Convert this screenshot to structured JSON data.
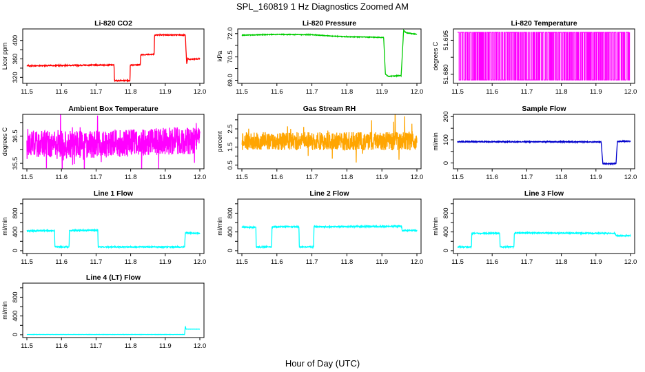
{
  "figure": {
    "title": "SPL_160819  1 Hz Diagnostics Zoomed AM",
    "xlabel": "Hour of Day (UTC)"
  },
  "chart_data": [
    {
      "type": "line",
      "title": "Li-820 CO2",
      "ylabel": "Licor ppm",
      "color": "#ff0000",
      "xlim": [
        11.5,
        12.0
      ],
      "ylim": [
        307,
        425
      ],
      "xticks": [
        "11.5",
        "11.6",
        "11.7",
        "11.8",
        "11.9",
        "12.0"
      ],
      "yticks": [
        320,
        340,
        360,
        380,
        400
      ],
      "ytick_labels": [
        "320",
        "",
        "360",
        "",
        "400"
      ],
      "noise": 1.0,
      "spike": 0,
      "series": [
        {
          "x": [
            11.5,
            11.752,
            11.753,
            11.798,
            11.799,
            11.828,
            11.829,
            11.868,
            11.869,
            11.958,
            11.962,
            11.965,
            11.968,
            12.0
          ],
          "y": [
            345,
            347,
            313,
            313,
            347,
            347,
            369,
            370,
            412,
            412,
            348,
            362,
            359,
            360
          ]
        }
      ]
    },
    {
      "type": "line",
      "title": "Li-820 Pressure",
      "ylabel": "kPa",
      "color": "#00cc00",
      "xlim": [
        11.5,
        12.0
      ],
      "ylim": [
        68.8,
        72.3
      ],
      "xticks": [
        "11.5",
        "11.6",
        "11.7",
        "11.8",
        "11.9",
        "12.0"
      ],
      "yticks": [
        69.0,
        69.75,
        70.5,
        71.25,
        72.0
      ],
      "ytick_labels": [
        "69.0",
        "",
        "70.5",
        "",
        "72.0"
      ],
      "noise": 0.02,
      "spike": 0,
      "series": [
        {
          "x": [
            11.5,
            11.6,
            11.7,
            11.75,
            11.8,
            11.85,
            11.905,
            11.91,
            11.918,
            11.955,
            11.962,
            11.97,
            12.0
          ],
          "y": [
            71.9,
            71.95,
            71.93,
            71.85,
            71.8,
            71.78,
            71.75,
            69.4,
            69.25,
            69.3,
            72.2,
            72.05,
            71.95
          ]
        }
      ]
    },
    {
      "type": "line",
      "title": "Li-820 Temperature",
      "ylabel": "degrees C",
      "color": "#ff00ff",
      "xlim": [
        11.5,
        12.0
      ],
      "ylim": [
        51.676,
        51.7
      ],
      "xticks": [
        "11.5",
        "11.6",
        "11.7",
        "11.8",
        "11.9",
        "12.0"
      ],
      "yticks": [
        51.68,
        51.6875,
        51.695
      ],
      "ytick_labels": [
        "51.680",
        "",
        "51.695"
      ],
      "style": "binary",
      "low": 51.6775,
      "high": 51.6985
    },
    {
      "type": "line",
      "title": "Ambient Box Temperature",
      "ylabel": "degrees C",
      "color": "#ff00ff",
      "xlim": [
        11.5,
        12.0
      ],
      "ylim": [
        35.3,
        37.3
      ],
      "xticks": [
        "11.5",
        "11.6",
        "11.7",
        "11.8",
        "11.9",
        "12.0"
      ],
      "yticks": [
        35.5,
        36.0,
        36.5,
        37.0
      ],
      "ytick_labels": [
        "35.5",
        "",
        "36.5",
        ""
      ],
      "noise": 0.5,
      "spike": 0.35,
      "series": [
        {
          "x": [
            11.5,
            11.75,
            11.85,
            12.0
          ],
          "y": [
            36.2,
            36.2,
            36.3,
            36.35
          ]
        }
      ]
    },
    {
      "type": "line",
      "title": "Gas Stream RH",
      "ylabel": "percent",
      "color": "#ffa500",
      "xlim": [
        11.5,
        12.0
      ],
      "ylim": [
        0.3,
        3.3
      ],
      "xticks": [
        "11.5",
        "11.6",
        "11.7",
        "11.8",
        "11.9",
        "12.0"
      ],
      "yticks": [
        0.5,
        1.0,
        1.5,
        2.0,
        2.5,
        3.0
      ],
      "ytick_labels": [
        "0.5",
        "",
        "1.5",
        "",
        "2.5",
        ""
      ],
      "noise": 0.5,
      "spike": 0.9,
      "series": [
        {
          "x": [
            11.5,
            12.0
          ],
          "y": [
            1.82,
            1.82
          ]
        }
      ]
    },
    {
      "type": "line",
      "title": "Sample Flow",
      "ylabel": "ml/min",
      "color": "#0000cc",
      "xlim": [
        11.5,
        12.0
      ],
      "ylim": [
        -25,
        210
      ],
      "xticks": [
        "11.5",
        "11.6",
        "11.7",
        "11.8",
        "11.9",
        "12.0"
      ],
      "yticks": [
        0,
        50,
        100,
        150,
        200
      ],
      "ytick_labels": [
        "0",
        "",
        "100",
        "",
        "200"
      ],
      "noise": 2,
      "spike": 0,
      "series": [
        {
          "x": [
            11.5,
            11.915,
            11.92,
            11.958,
            11.962,
            12.0
          ],
          "y": [
            92,
            91,
            -3,
            -3,
            93,
            94
          ]
        }
      ]
    },
    {
      "type": "line",
      "title": "Line 1 Flow",
      "ylabel": "ml/min",
      "color": "#00ffff",
      "xlim": [
        11.5,
        12.0
      ],
      "ylim": [
        -60,
        1100
      ],
      "xticks": [
        "11.5",
        "11.6",
        "11.7",
        "11.8",
        "11.9",
        "12.0"
      ],
      "yticks": [
        0,
        200,
        400,
        600,
        800,
        1000
      ],
      "ytick_labels": [
        "0",
        "",
        "400",
        "",
        "800",
        ""
      ],
      "noise": 12,
      "spike": 0,
      "series": [
        {
          "x": [
            11.5,
            11.58,
            11.581,
            11.622,
            11.623,
            11.705,
            11.706,
            11.956,
            11.958,
            12.0
          ],
          "y": [
            420,
            430,
            80,
            80,
            430,
            440,
            80,
            80,
            380,
            370
          ]
        }
      ]
    },
    {
      "type": "line",
      "title": "Line 2 Flow",
      "ylabel": "ml/min",
      "color": "#00ffff",
      "xlim": [
        11.5,
        12.0
      ],
      "ylim": [
        -60,
        1100
      ],
      "xticks": [
        "11.5",
        "11.6",
        "11.7",
        "11.8",
        "11.9",
        "12.0"
      ],
      "yticks": [
        0,
        200,
        400,
        600,
        800,
        1000
      ],
      "ytick_labels": [
        "0",
        "",
        "400",
        "",
        "800",
        ""
      ],
      "noise": 12,
      "spike": 0,
      "series": [
        {
          "x": [
            11.5,
            11.54,
            11.541,
            11.585,
            11.586,
            11.663,
            11.664,
            11.705,
            11.706,
            11.956,
            11.958,
            12.0
          ],
          "y": [
            500,
            500,
            80,
            80,
            510,
            510,
            80,
            80,
            510,
            520,
            430,
            430
          ]
        }
      ]
    },
    {
      "type": "line",
      "title": "Line 3 Flow",
      "ylabel": "ml/min",
      "color": "#00ffff",
      "xlim": [
        11.5,
        12.0
      ],
      "ylim": [
        -60,
        1100
      ],
      "xticks": [
        "11.5",
        "11.6",
        "11.7",
        "11.8",
        "11.9",
        "12.0"
      ],
      "yticks": [
        0,
        200,
        400,
        600,
        800,
        1000
      ],
      "ytick_labels": [
        "0",
        "",
        "400",
        "",
        "800",
        ""
      ],
      "noise": 12,
      "spike": 0,
      "series": [
        {
          "x": [
            11.5,
            11.54,
            11.541,
            11.622,
            11.623,
            11.663,
            11.664,
            11.956,
            11.958,
            12.0
          ],
          "y": [
            80,
            80,
            370,
            370,
            80,
            80,
            380,
            370,
            320,
            320
          ]
        }
      ]
    },
    {
      "type": "line",
      "title": "Line 4 (LT) Flow",
      "ylabel": "ml/min",
      "color": "#00ffff",
      "xlim": [
        11.5,
        12.0
      ],
      "ylim": [
        -60,
        1100
      ],
      "xticks": [
        "11.5",
        "11.6",
        "11.7",
        "11.8",
        "11.9",
        "12.0"
      ],
      "yticks": [
        0,
        200,
        400,
        600,
        800,
        1000
      ],
      "ytick_labels": [
        "0",
        "",
        "400",
        "",
        "800",
        ""
      ],
      "noise": 2,
      "spike": 0,
      "series": [
        {
          "x": [
            11.5,
            11.956,
            11.958,
            11.96,
            12.0
          ],
          "y": [
            5,
            5,
            180,
            120,
            120
          ]
        }
      ]
    }
  ]
}
